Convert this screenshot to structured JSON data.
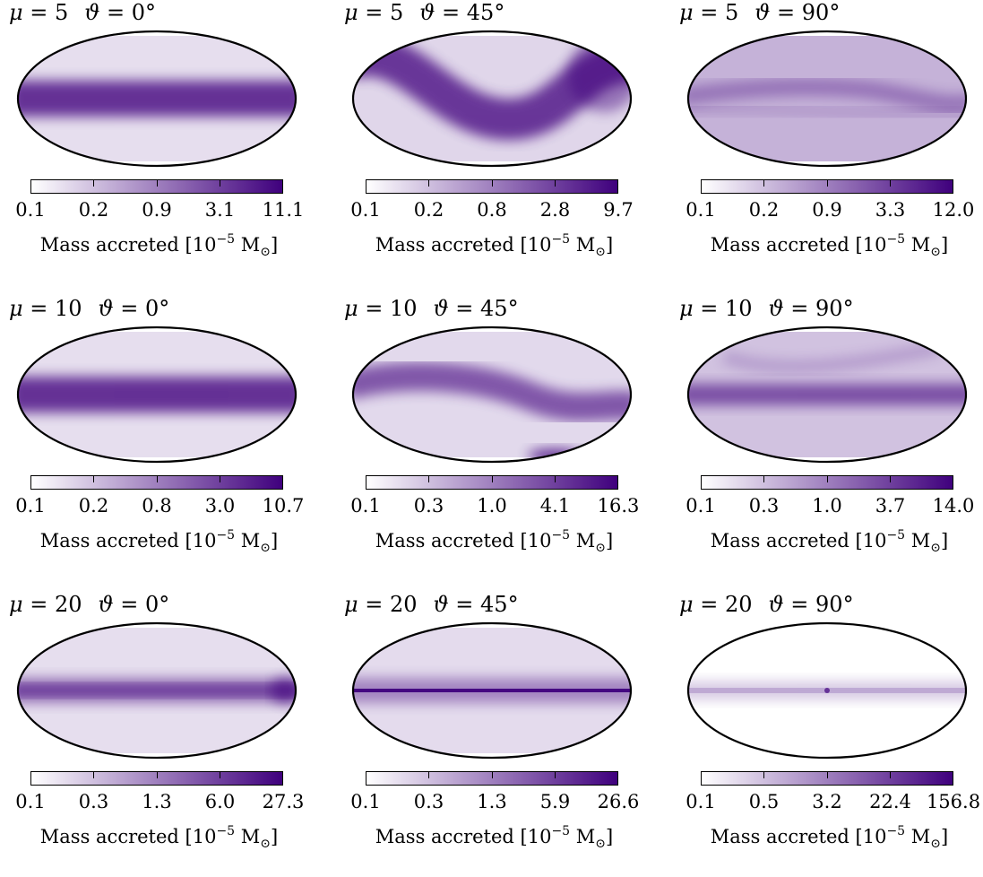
{
  "colorbar_label": {
    "prefix": "Mass accreted [10",
    "exponent": "−5",
    "unit": " M",
    "unit_sub": "⊙",
    "suffix": "]"
  },
  "colors": {
    "low": "#ffffff",
    "high": "#3f007d",
    "border": "#000000"
  },
  "chart_data": [
    {
      "type": "heatmap",
      "mu": "5",
      "theta": "0°",
      "band": "equatorial",
      "ticks": [
        "0.1",
        "0.2",
        "0.9",
        "3.1",
        "11.1"
      ]
    },
    {
      "type": "heatmap",
      "mu": "5",
      "theta": "45°",
      "band": "wave",
      "ticks": [
        "0.1",
        "0.2",
        "0.8",
        "2.8",
        "9.7"
      ]
    },
    {
      "type": "heatmap",
      "mu": "5",
      "theta": "90°",
      "band": "diffuse",
      "ticks": [
        "0.1",
        "0.2",
        "0.9",
        "3.3",
        "12.0"
      ]
    },
    {
      "type": "heatmap",
      "mu": "10",
      "theta": "0°",
      "band": "equatorial",
      "ticks": [
        "0.1",
        "0.2",
        "0.8",
        "3.0",
        "10.7"
      ]
    },
    {
      "type": "heatmap",
      "mu": "10",
      "theta": "45°",
      "band": "wave-mild",
      "ticks": [
        "0.1",
        "0.3",
        "1.0",
        "4.1",
        "16.3"
      ]
    },
    {
      "type": "heatmap",
      "mu": "10",
      "theta": "90°",
      "band": "equatorial-diffuse",
      "ticks": [
        "0.1",
        "0.3",
        "1.0",
        "3.7",
        "14.0"
      ]
    },
    {
      "type": "heatmap",
      "mu": "20",
      "theta": "0°",
      "band": "equatorial-thin",
      "ticks": [
        "0.1",
        "0.3",
        "1.3",
        "6.0",
        "27.3"
      ]
    },
    {
      "type": "heatmap",
      "mu": "20",
      "theta": "45°",
      "band": "equatorial-line",
      "ticks": [
        "0.1",
        "0.3",
        "1.3",
        "5.9",
        "26.6"
      ]
    },
    {
      "type": "heatmap",
      "mu": "20",
      "theta": "90°",
      "band": "equatorial-faint",
      "ticks": [
        "0.1",
        "0.5",
        "3.2",
        "22.4",
        "156.8"
      ]
    }
  ]
}
